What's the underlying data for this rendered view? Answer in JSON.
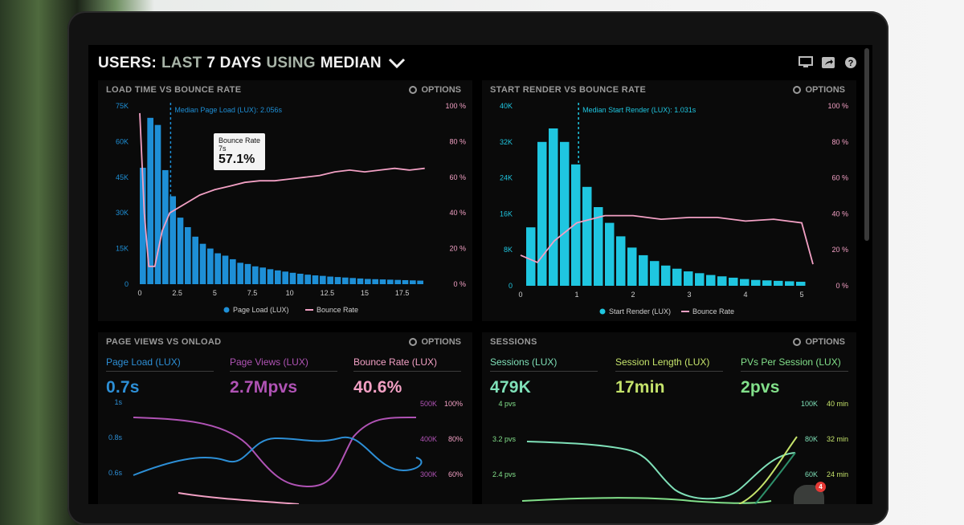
{
  "header": {
    "part1": "USERS:",
    "part2": "LAST",
    "part3": "7 DAYS",
    "part4": "USING",
    "part5": "MEDIAN"
  },
  "icons": [
    "monitor-icon",
    "share-icon",
    "help-icon",
    "chevron-down-icon",
    "gear-icon"
  ],
  "options_label": "OPTIONS",
  "panels": {
    "load": {
      "title": "LOAD TIME VS BOUNCE RATE",
      "median_label": "Median Page Load (LUX): 2.056s",
      "tooltip": {
        "label": "Bounce Rate",
        "sub": "7s",
        "value": "57.1%"
      },
      "legend": [
        "Page Load (LUX)",
        "Bounce Rate"
      ]
    },
    "render": {
      "title": "START RENDER VS BOUNCE RATE",
      "median_label": "Median Start Render (LUX): 1.031s",
      "legend": [
        "Start Render (LUX)",
        "Bounce Rate"
      ]
    },
    "views": {
      "title": "PAGE VIEWS VS ONLOAD",
      "kpis": [
        {
          "label": "Page Load (LUX)",
          "value": "0.7s",
          "color": "#2d8fd6"
        },
        {
          "label": "Page Views (LUX)",
          "value": "2.7Mpvs",
          "color": "#b053b5"
        },
        {
          "label": "Bounce Rate (LUX)",
          "value": "40.6%",
          "color": "#f2a0c4"
        }
      ],
      "left_ticks": [
        "1s",
        "0.8s",
        "0.6s"
      ],
      "mid_ticks": [
        "500K",
        "400K",
        "300K"
      ],
      "right_ticks": [
        "100%",
        "80%",
        "60%"
      ]
    },
    "sessions": {
      "title": "SESSIONS",
      "kpis": [
        {
          "label": "Sessions (LUX)",
          "value": "479K",
          "color": "#7fe0b8"
        },
        {
          "label": "Session Length (LUX)",
          "value": "17min",
          "color": "#c5e36b"
        },
        {
          "label": "PVs Per Session (LUX)",
          "value": "2pvs",
          "color": "#82e08a"
        }
      ],
      "left_ticks": [
        "4 pvs",
        "3.2 pvs",
        "2.4 pvs"
      ],
      "mid_ticks": [
        "100K",
        "80K",
        "60K"
      ],
      "right_ticks": [
        "40 min",
        "32 min",
        "24 min"
      ]
    }
  },
  "badge_count": "4",
  "chart_data": [
    {
      "type": "bar",
      "title": "LOAD TIME VS BOUNCE RATE",
      "x_ticks": [
        "0",
        "2.5",
        "5",
        "7.5",
        "10",
        "12.5",
        "15",
        "17.5"
      ],
      "y_left_ticks": [
        "75K",
        "60K",
        "45K",
        "30K",
        "15K",
        "0"
      ],
      "y_right_ticks": [
        "100 %",
        "80 %",
        "60 %",
        "40 %",
        "20 %",
        "0 %"
      ],
      "ylim": [
        0,
        75000
      ],
      "x_step": 0.5,
      "x_start": 0,
      "series": [
        {
          "name": "Page Load (LUX)",
          "values": [
            49000,
            70000,
            67000,
            48000,
            37000,
            28000,
            24000,
            20000,
            17000,
            15000,
            13000,
            12000,
            10500,
            9000,
            8500,
            7500,
            7000,
            6300,
            5800,
            5300,
            4800,
            4400,
            4000,
            3700,
            3500,
            3200,
            3000,
            2800,
            2600,
            2400,
            2200,
            2100,
            2000,
            1900,
            1800,
            1700,
            1600,
            1500
          ]
        }
      ],
      "bounce_rate": {
        "name": "Bounce Rate",
        "x": [
          0,
          0.3,
          0.6,
          1,
          1.5,
          2,
          3,
          4,
          5,
          6,
          7,
          8,
          9,
          10,
          11,
          12,
          13,
          14,
          15,
          16,
          17,
          18,
          19
        ],
        "y": [
          96,
          40,
          10,
          10,
          30,
          40,
          45,
          50,
          53,
          55,
          57.1,
          58,
          58,
          59,
          60,
          61,
          63,
          64,
          63,
          64,
          65,
          64,
          65
        ]
      }
    },
    {
      "type": "bar",
      "title": "START RENDER VS BOUNCE RATE",
      "x_ticks": [
        "0",
        "1",
        "2",
        "3",
        "4",
        "5"
      ],
      "y_left_ticks": [
        "40K",
        "32K",
        "24K",
        "16K",
        "8K",
        "0"
      ],
      "y_right_ticks": [
        "100 %",
        "80 %",
        "60 %",
        "40 %",
        "20 %",
        "0 %"
      ],
      "ylim": [
        0,
        40000
      ],
      "x_step": 0.2,
      "x_start": 0.1,
      "series": [
        {
          "name": "Start Render (LUX)",
          "values": [
            13000,
            32000,
            35000,
            32000,
            27000,
            22000,
            17500,
            14000,
            11000,
            8500,
            6800,
            5500,
            4500,
            3800,
            3200,
            2800,
            2400,
            2100,
            1800,
            1500,
            1300,
            1200,
            1100,
            1000,
            900
          ]
        }
      ],
      "bounce_rate": {
        "name": "Bounce Rate",
        "x": [
          0,
          0.3,
          0.6,
          1,
          1.5,
          2,
          2.5,
          3,
          3.5,
          4,
          4.5,
          5,
          5.2
        ],
        "y": [
          17,
          13,
          25,
          35,
          39,
          39,
          37,
          38,
          38,
          36,
          37,
          35,
          12
        ]
      }
    }
  ]
}
